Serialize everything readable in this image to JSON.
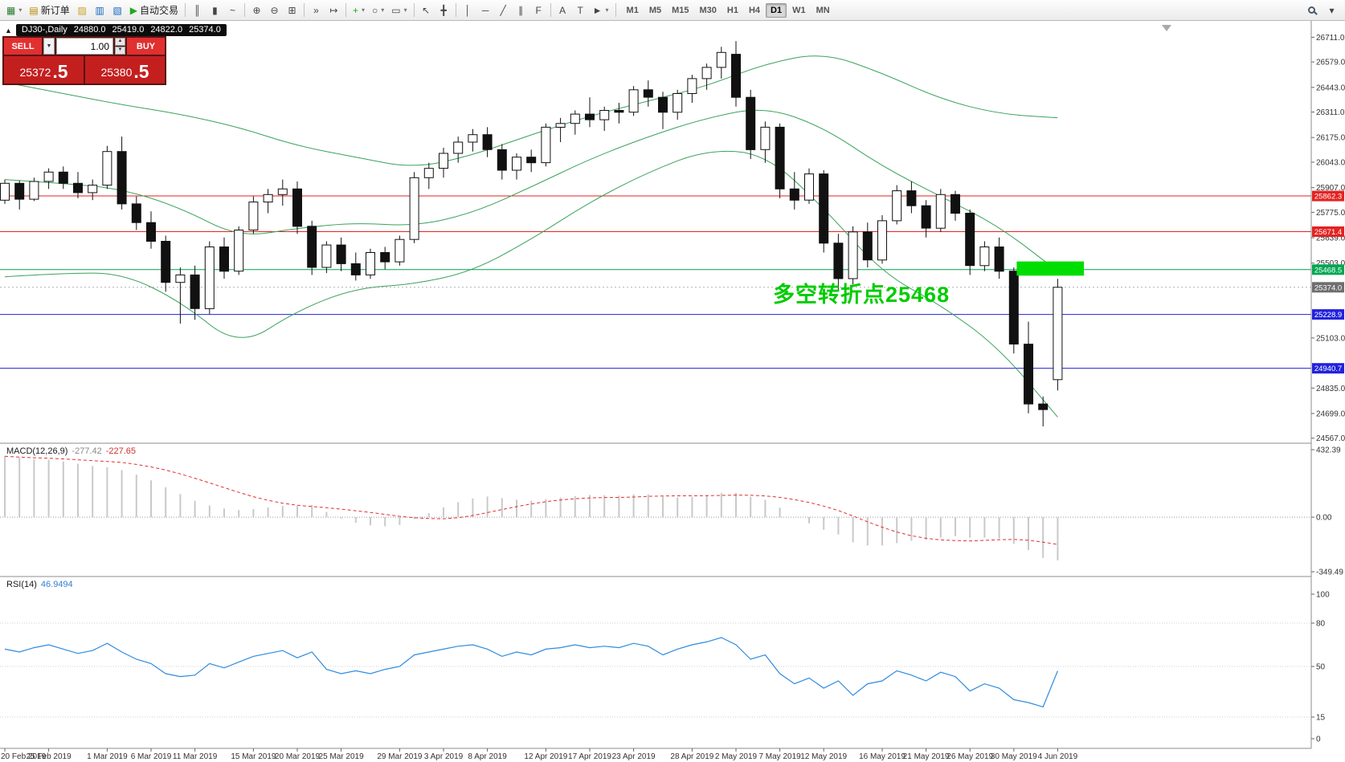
{
  "toolbar": {
    "items": [
      {
        "type": "icon",
        "name": "new-chart-button",
        "glyph": "▦",
        "color": "#2e7d32",
        "dropdown": true
      },
      {
        "type": "button",
        "name": "new-order-button",
        "glyph": "▤",
        "glyph_color": "#b58900",
        "label": "新订单"
      },
      {
        "type": "icon",
        "name": "profiles-icon",
        "glyph": "▨",
        "color": "#c9a227"
      },
      {
        "type": "icon",
        "name": "market-watch-icon",
        "glyph": "▥",
        "color": "#1565c0"
      },
      {
        "type": "icon",
        "name": "data-window-icon",
        "glyph": "▧",
        "color": "#1565c0"
      },
      {
        "type": "button",
        "name": "auto-trading-button",
        "glyph": "▶",
        "glyph_color": "#1faa1f",
        "label": "自动交易"
      },
      {
        "type": "sep"
      },
      {
        "type": "icon",
        "name": "bar-chart-icon",
        "glyph": "║",
        "color": "#444"
      },
      {
        "type": "icon",
        "name": "candlestick-chart-icon",
        "glyph": "▮",
        "color": "#444"
      },
      {
        "type": "icon",
        "name": "line-chart-icon",
        "glyph": "~",
        "color": "#444"
      },
      {
        "type": "sep"
      },
      {
        "type": "icon",
        "name": "zoom-in-icon",
        "glyph": "⊕",
        "color": "#444"
      },
      {
        "type": "icon",
        "name": "zoom-out-icon",
        "glyph": "⊖",
        "color": "#444"
      },
      {
        "type": "icon",
        "name": "tile-windows-icon",
        "glyph": "⊞",
        "color": "#444"
      },
      {
        "type": "sep"
      },
      {
        "type": "icon",
        "name": "auto-scroll-icon",
        "glyph": "»",
        "color": "#444"
      },
      {
        "type": "icon",
        "name": "chart-shift-icon",
        "glyph": "↦",
        "color": "#444"
      },
      {
        "type": "sep"
      },
      {
        "type": "icon",
        "name": "indicators-icon",
        "glyph": "+",
        "color": "#1faa1f",
        "dropdown": true
      },
      {
        "type": "icon",
        "name": "periods-icon",
        "glyph": "○",
        "color": "#444",
        "dropdown": true
      },
      {
        "type": "icon",
        "name": "templates-icon",
        "glyph": "▭",
        "color": "#444",
        "dropdown": true
      },
      {
        "type": "sep"
      },
      {
        "type": "icon",
        "name": "cursor-icon",
        "glyph": "↖",
        "color": "#444"
      },
      {
        "type": "icon",
        "name": "crosshair-icon",
        "glyph": "╋",
        "color": "#444"
      },
      {
        "type": "sep"
      },
      {
        "type": "icon",
        "name": "vertical-line-icon",
        "glyph": "│",
        "color": "#444"
      },
      {
        "type": "icon",
        "name": "horizontal-line-icon",
        "glyph": "─",
        "color": "#444"
      },
      {
        "type": "icon",
        "name": "trendline-icon",
        "glyph": "╱",
        "color": "#444"
      },
      {
        "type": "icon",
        "name": "channel-icon",
        "glyph": "∥",
        "color": "#444"
      },
      {
        "type": "icon",
        "name": "fibonacci-icon",
        "glyph": "F",
        "color": "#444"
      },
      {
        "type": "sep"
      },
      {
        "type": "icon",
        "name": "text-icon",
        "glyph": "A",
        "color": "#444"
      },
      {
        "type": "icon",
        "name": "text-label-icon",
        "glyph": "T",
        "color": "#444"
      },
      {
        "type": "icon",
        "name": "arrows-icon",
        "glyph": "►",
        "color": "#444",
        "dropdown": true
      },
      {
        "type": "sep"
      }
    ],
    "timeframes": [
      {
        "label": "M1"
      },
      {
        "label": "M5"
      },
      {
        "label": "M15"
      },
      {
        "label": "M30"
      },
      {
        "label": "H1"
      },
      {
        "label": "H4"
      },
      {
        "label": "D1",
        "active": true
      },
      {
        "label": "W1"
      },
      {
        "label": "MN"
      }
    ]
  },
  "symbol_header": {
    "toggle": "▲",
    "symbol": "DJ30-,Daily",
    "open": "24880.0",
    "high": "25419.0",
    "low": "24822.0",
    "close": "25374.0"
  },
  "trade_panel": {
    "sell_label": "SELL",
    "buy_label": "BUY",
    "volume": "1.00",
    "sell_price": {
      "main": "25372",
      "pip": ".5"
    },
    "buy_price": {
      "main": "25380",
      "pip": ".5"
    }
  },
  "annotation": {
    "text": "多空转折点25468",
    "color": "#00cc00"
  },
  "levels": [
    {
      "label": "25862.3",
      "price": 25862.3,
      "color": "#e42222"
    },
    {
      "label": "25671.4",
      "price": 25671.4,
      "color": "#e42222"
    },
    {
      "label": "25468.5",
      "price": 25468.5,
      "color": "#00a651"
    },
    {
      "label": "25228.9",
      "price": 25228.9,
      "color": "#2222dd"
    },
    {
      "label": "24940.7",
      "price": 24940.7,
      "color": "#2222dd"
    }
  ],
  "bid_line": {
    "label": "25374.0",
    "price": 25374.0,
    "badge_color": "#6e6e6e",
    "line_color": "#b0b0b0"
  },
  "green_box": {
    "price_top": 25512,
    "price_bottom": 25436,
    "index_start": 69.2,
    "index_end": 73.8,
    "color": "#00dd00"
  },
  "macd_label": {
    "name": "MACD(12,26,9)",
    "value_main": "-277.42",
    "value_signal": "-227.65"
  },
  "rsi_label": {
    "name": "RSI(14)",
    "value": "46.9494"
  },
  "axes": {
    "price_ticks": [
      "26711.0",
      "26579.0",
      "26443.0",
      "26311.0",
      "26175.0",
      "26043.0",
      "25907.0",
      "25775.0",
      "25639.0",
      "25503.0",
      "25103.0",
      "24835.0",
      "24699.0",
      "24567.0"
    ],
    "macd_ticks": [
      "432.39",
      "0.00",
      "-349.49"
    ],
    "rsi_ticks": [
      "100",
      "80",
      "50",
      "15",
      "0"
    ],
    "dates": [
      {
        "label": "20 Feb 2019",
        "index": 0
      },
      {
        "label": "25 Feb 2019",
        "index": 3
      },
      {
        "label": "1 Mar 2019",
        "index": 7
      },
      {
        "label": "6 Mar 2019",
        "index": 10
      },
      {
        "label": "11 Mar 2019",
        "index": 13
      },
      {
        "label": "15 Mar 2019",
        "index": 17
      },
      {
        "label": "20 Mar 2019",
        "index": 20
      },
      {
        "label": "25 Mar 2019",
        "index": 23
      },
      {
        "label": "29 Mar 2019",
        "index": 27
      },
      {
        "label": "3 Apr 2019",
        "index": 30
      },
      {
        "label": "8 Apr 2019",
        "index": 33
      },
      {
        "label": "12 Apr 2019",
        "index": 37
      },
      {
        "label": "17 Apr 2019",
        "index": 40
      },
      {
        "label": "23 Apr 2019",
        "index": 43
      },
      {
        "label": "28 Apr 2019",
        "index": 47
      },
      {
        "label": "2 May 2019",
        "index": 50
      },
      {
        "label": "7 May 2019",
        "index": 53
      },
      {
        "label": "12 May 2019",
        "index": 56
      },
      {
        "label": "16 May 2019",
        "index": 60
      },
      {
        "label": "21 May 2019",
        "index": 63
      },
      {
        "label": "26 May 2019",
        "index": 66
      },
      {
        "label": "30 May 2019",
        "index": 69
      },
      {
        "label": "4 Jun 2019",
        "index": 72
      }
    ]
  },
  "chart_data": {
    "type": "candlestick",
    "symbol": "DJ30-",
    "timeframe": "Daily",
    "ylim": [
      24540,
      26790
    ],
    "ohlc": [
      [
        25840,
        25950,
        25820,
        25930
      ],
      [
        25930,
        25945,
        25790,
        25845
      ],
      [
        25845,
        25960,
        25835,
        25940
      ],
      [
        25940,
        26010,
        25900,
        25990
      ],
      [
        25990,
        26020,
        25900,
        25930
      ],
      [
        25930,
        25990,
        25850,
        25880
      ],
      [
        25880,
        25950,
        25840,
        25920
      ],
      [
        25920,
        26130,
        25900,
        26100
      ],
      [
        26100,
        26180,
        25790,
        25820
      ],
      [
        25820,
        25860,
        25680,
        25720
      ],
      [
        25720,
        25780,
        25580,
        25620
      ],
      [
        25620,
        25650,
        25350,
        25400
      ],
      [
        25400,
        25480,
        25180,
        25440
      ],
      [
        25440,
        25490,
        25200,
        25260
      ],
      [
        25260,
        25620,
        25230,
        25590
      ],
      [
        25590,
        25640,
        25420,
        25460
      ],
      [
        25460,
        25700,
        25440,
        25680
      ],
      [
        25680,
        25860,
        25660,
        25830
      ],
      [
        25830,
        25900,
        25770,
        25870
      ],
      [
        25870,
        25950,
        25810,
        25900
      ],
      [
        25900,
        25940,
        25660,
        25700
      ],
      [
        25700,
        25730,
        25440,
        25480
      ],
      [
        25480,
        25620,
        25450,
        25600
      ],
      [
        25600,
        25640,
        25460,
        25500
      ],
      [
        25500,
        25560,
        25410,
        25440
      ],
      [
        25440,
        25580,
        25420,
        25560
      ],
      [
        25560,
        25590,
        25470,
        25510
      ],
      [
        25510,
        25650,
        25490,
        25630
      ],
      [
        25630,
        25990,
        25610,
        25960
      ],
      [
        25960,
        26040,
        25900,
        26010
      ],
      [
        26010,
        26120,
        25960,
        26090
      ],
      [
        26090,
        26180,
        26040,
        26150
      ],
      [
        26150,
        26220,
        26100,
        26190
      ],
      [
        26190,
        26230,
        26070,
        26110
      ],
      [
        26110,
        26140,
        25950,
        26000
      ],
      [
        26000,
        26090,
        25950,
        26070
      ],
      [
        26070,
        26110,
        25990,
        26040
      ],
      [
        26040,
        26250,
        26020,
        26230
      ],
      [
        26230,
        26280,
        26150,
        26250
      ],
      [
        26250,
        26320,
        26190,
        26300
      ],
      [
        26300,
        26390,
        26230,
        26270
      ],
      [
        26270,
        26340,
        26210,
        26320
      ],
      [
        26320,
        26360,
        26250,
        26310
      ],
      [
        26310,
        26450,
        26290,
        26430
      ],
      [
        26430,
        26480,
        26340,
        26390
      ],
      [
        26390,
        26420,
        26220,
        26310
      ],
      [
        26310,
        26430,
        26270,
        26410
      ],
      [
        26410,
        26510,
        26360,
        26490
      ],
      [
        26490,
        26570,
        26430,
        26550
      ],
      [
        26550,
        26660,
        26490,
        26630
      ],
      [
        26620,
        26690,
        26340,
        26390
      ],
      [
        26390,
        26430,
        26060,
        26110
      ],
      [
        26110,
        26260,
        26040,
        26230
      ],
      [
        26230,
        26250,
        25850,
        25900
      ],
      [
        25900,
        25990,
        25790,
        25840
      ],
      [
        25840,
        26010,
        25820,
        25980
      ],
      [
        25980,
        26000,
        25560,
        25610
      ],
      [
        25610,
        25660,
        25360,
        25420
      ],
      [
        25420,
        25700,
        25390,
        25670
      ],
      [
        25670,
        25720,
        25480,
        25520
      ],
      [
        25520,
        25760,
        25500,
        25730
      ],
      [
        25730,
        25920,
        25710,
        25890
      ],
      [
        25890,
        25940,
        25770,
        25810
      ],
      [
        25810,
        25840,
        25640,
        25690
      ],
      [
        25690,
        25900,
        25670,
        25870
      ],
      [
        25870,
        25890,
        25730,
        25770
      ],
      [
        25770,
        25790,
        25440,
        25490
      ],
      [
        25490,
        25620,
        25460,
        25590
      ],
      [
        25590,
        25640,
        25420,
        25460
      ],
      [
        25460,
        25480,
        25020,
        25070
      ],
      [
        25070,
        25190,
        24700,
        24750
      ],
      [
        24750,
        24790,
        24630,
        24720
      ],
      [
        24880,
        25419,
        24822,
        25374
      ]
    ],
    "bollinger": {
      "indices": [
        0,
        4,
        8,
        12,
        16,
        20,
        24,
        28,
        32,
        36,
        40,
        44,
        48,
        52,
        56,
        60,
        64,
        68,
        72
      ],
      "upper": [
        26470,
        26410,
        26350,
        26300,
        26230,
        26130,
        26070,
        26010,
        26080,
        26190,
        26290,
        26370,
        26450,
        26570,
        26630,
        26520,
        26380,
        26300,
        26280
      ],
      "middle": [
        25950,
        25930,
        25900,
        25800,
        25640,
        25690,
        25720,
        25700,
        25770,
        25910,
        26060,
        26180,
        26280,
        26340,
        26230,
        26020,
        25860,
        25700,
        25460
      ],
      "lower": [
        25430,
        25450,
        25450,
        25300,
        25050,
        25250,
        25370,
        25390,
        25460,
        25630,
        25830,
        25990,
        26110,
        26090,
        25800,
        25450,
        25280,
        25050,
        24680
      ]
    },
    "macd": {
      "main": [
        390,
        380,
        372,
        368,
        356,
        342,
        328,
        320,
        302,
        272,
        236,
        192,
        148,
        105,
        75,
        55,
        46,
        52,
        62,
        72,
        72,
        78,
        34,
        -8,
        -36,
        -52,
        -58,
        -50,
        -12,
        26,
        62,
        96,
        120,
        132,
        122,
        112,
        106,
        116,
        126,
        136,
        142,
        141,
        138,
        146,
        146,
        131,
        126,
        131,
        141,
        156,
        156,
        131,
        111,
        61,
        1,
        -39,
        -81,
        -111,
        -161,
        -181,
        -181,
        -166,
        -151,
        -146,
        -131,
        -121,
        -131,
        -131,
        -136,
        -171,
        -211,
        -261,
        -277.42
      ]
    },
    "rsi": {
      "values": [
        62,
        60,
        63,
        65,
        62,
        59,
        61,
        66,
        60,
        55,
        52,
        45,
        43,
        44,
        52,
        49,
        53,
        57,
        59,
        61,
        56,
        60,
        48,
        45,
        47,
        45,
        48,
        50,
        58,
        60,
        62,
        64,
        65,
        62,
        57,
        60,
        58,
        62,
        63,
        65,
        63,
        64,
        63,
        66,
        64,
        58,
        62,
        65,
        67,
        70,
        65,
        55,
        58,
        45,
        38,
        42,
        35,
        40,
        30,
        38,
        40,
        47,
        44,
        40,
        46,
        43,
        33,
        38,
        35,
        27,
        25,
        22,
        46.9494
      ]
    }
  }
}
